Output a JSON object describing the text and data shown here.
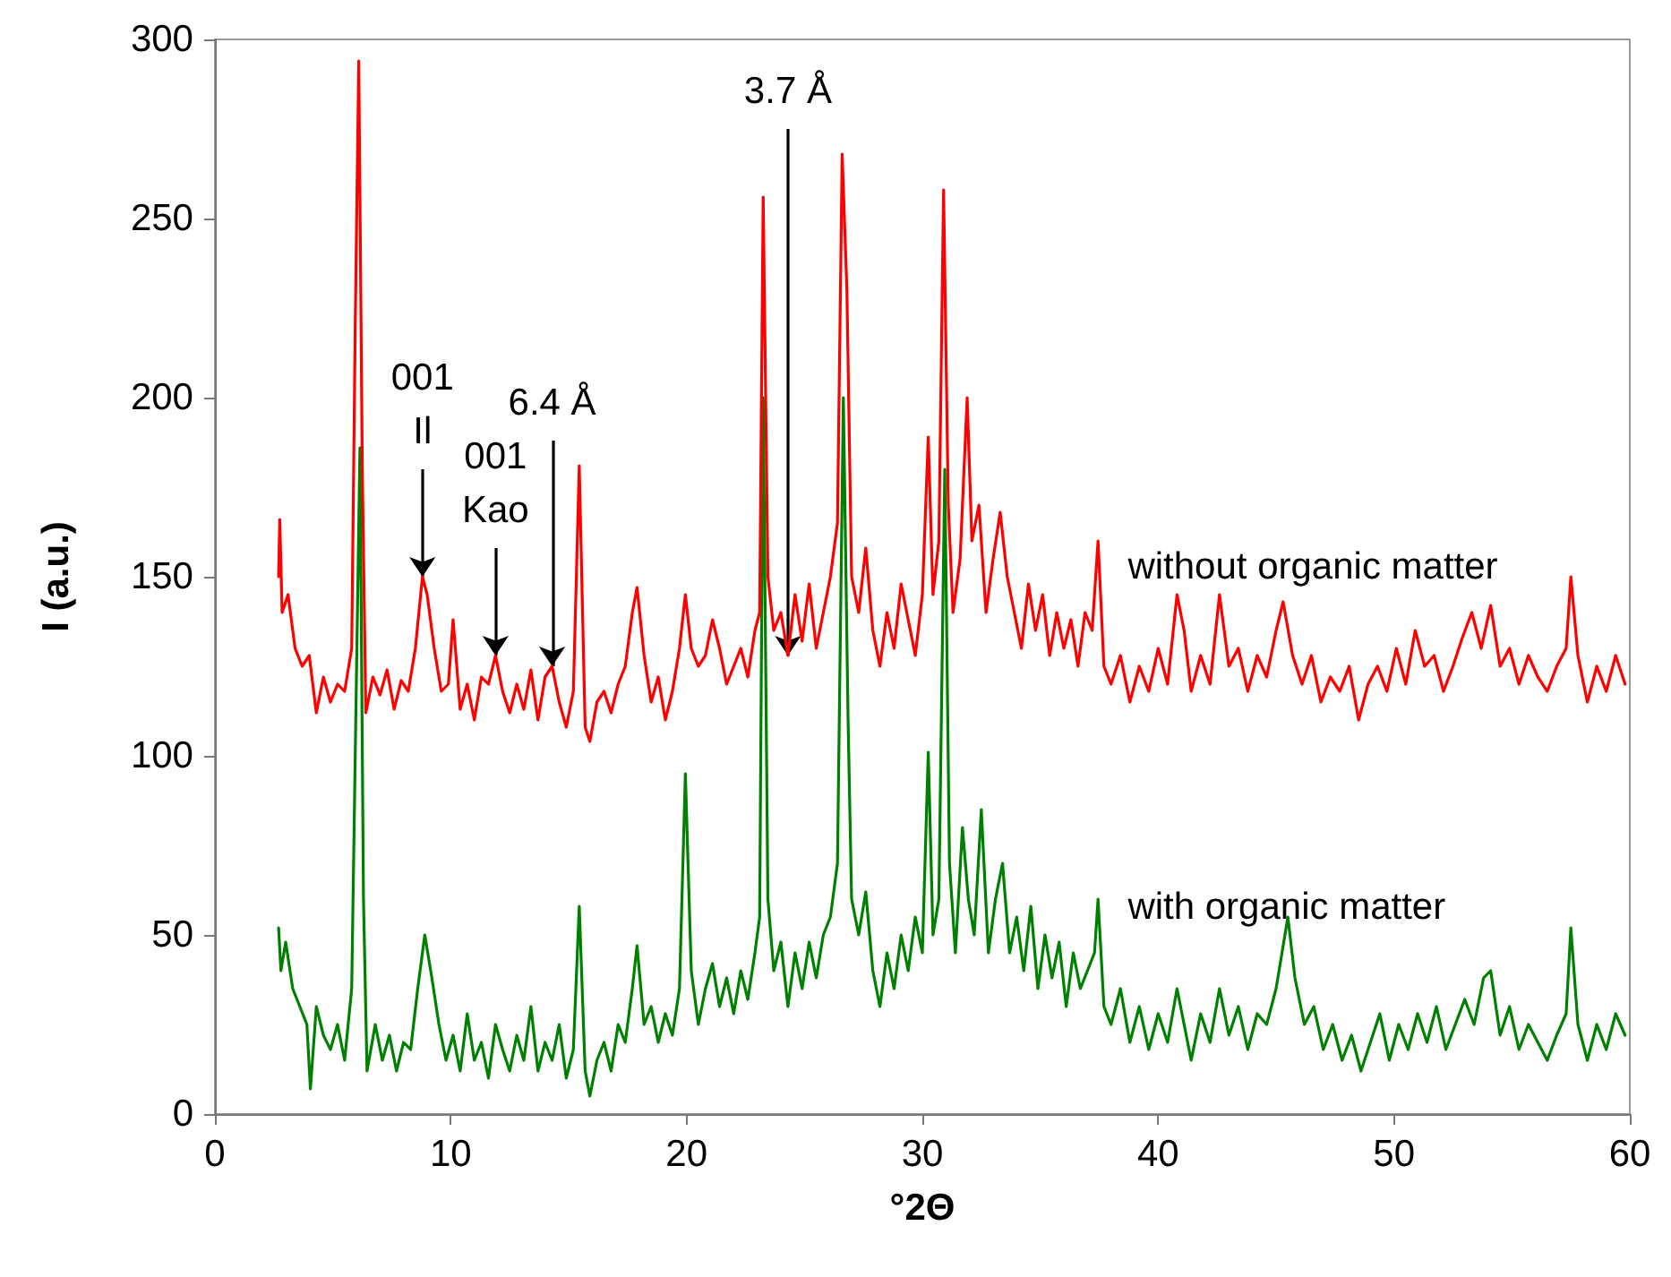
{
  "chart_data": {
    "type": "line",
    "xlabel": "°2Θ",
    "ylabel": "I (a.u.)",
    "xlim": [
      0,
      60
    ],
    "xticks": [
      0,
      10,
      20,
      30,
      40,
      50,
      60
    ],
    "ylim": [
      0,
      300
    ],
    "yticks": [
      0,
      50,
      100,
      150,
      200,
      250,
      300
    ],
    "grid": false,
    "legend": false,
    "marker": "none",
    "line_style": "solid",
    "annotations": [
      {
        "text": "001\nIl",
        "x": 8.8,
        "y": 150
      },
      {
        "text": "001\nKao",
        "x": 11.9,
        "y": 128
      },
      {
        "text": "6.4 Å",
        "x": 14.3,
        "y": 125
      },
      {
        "text": "3.7 Å",
        "x": 24.3,
        "y": 128
      }
    ],
    "series": [
      {
        "name": "without organic matter",
        "color": "#ff0000",
        "x": [
          2.7,
          2.75,
          2.85,
          3.1,
          3.4,
          3.7,
          4.0,
          4.3,
          4.6,
          4.9,
          5.2,
          5.5,
          5.8,
          5.95,
          6.1,
          6.25,
          6.4,
          6.7,
          7.0,
          7.3,
          7.6,
          7.9,
          8.2,
          8.5,
          8.8,
          9.0,
          9.3,
          9.6,
          9.9,
          10.1,
          10.4,
          10.7,
          11.0,
          11.3,
          11.6,
          11.9,
          12.2,
          12.5,
          12.8,
          13.1,
          13.4,
          13.7,
          14.0,
          14.3,
          14.6,
          14.9,
          15.2,
          15.45,
          15.7,
          15.9,
          16.2,
          16.5,
          16.8,
          17.1,
          17.4,
          17.7,
          17.9,
          18.2,
          18.5,
          18.8,
          19.1,
          19.4,
          19.7,
          19.95,
          20.2,
          20.5,
          20.8,
          21.1,
          21.4,
          21.7,
          22.0,
          22.3,
          22.6,
          22.9,
          23.1,
          23.25,
          23.45,
          23.7,
          24.0,
          24.3,
          24.6,
          24.9,
          25.2,
          25.5,
          25.8,
          26.1,
          26.4,
          26.6,
          26.8,
          27.0,
          27.3,
          27.6,
          27.9,
          28.2,
          28.5,
          28.8,
          29.1,
          29.4,
          29.7,
          30.0,
          30.25,
          30.45,
          30.7,
          30.9,
          31.1,
          31.3,
          31.6,
          31.9,
          32.1,
          32.4,
          32.7,
          33.0,
          33.3,
          33.6,
          33.9,
          34.2,
          34.5,
          34.8,
          35.1,
          35.4,
          35.7,
          36.0,
          36.3,
          36.6,
          36.9,
          37.2,
          37.45,
          37.7,
          38.0,
          38.4,
          38.8,
          39.2,
          39.6,
          40.0,
          40.4,
          40.8,
          41.1,
          41.4,
          41.8,
          42.2,
          42.6,
          43.0,
          43.4,
          43.8,
          44.2,
          44.6,
          45.0,
          45.3,
          45.7,
          46.1,
          46.5,
          46.9,
          47.3,
          47.7,
          48.1,
          48.5,
          48.9,
          49.3,
          49.7,
          50.1,
          50.5,
          50.9,
          51.3,
          51.7,
          52.1,
          52.5,
          52.9,
          53.3,
          53.7,
          54.1,
          54.5,
          54.9,
          55.3,
          55.7,
          56.1,
          56.5,
          56.9,
          57.3,
          57.5,
          57.8,
          58.2,
          58.6,
          59.0,
          59.4,
          59.8
        ],
        "values": [
          150,
          166,
          140,
          145,
          130,
          125,
          128,
          112,
          122,
          115,
          120,
          118,
          130,
          220,
          294,
          180,
          112,
          122,
          117,
          124,
          113,
          121,
          118,
          130,
          150,
          145,
          130,
          118,
          120,
          138,
          113,
          120,
          110,
          122,
          120,
          128,
          118,
          112,
          120,
          113,
          124,
          110,
          122,
          125,
          115,
          108,
          118,
          181,
          108,
          104,
          115,
          118,
          112,
          120,
          125,
          140,
          147,
          128,
          115,
          122,
          110,
          118,
          130,
          145,
          130,
          125,
          128,
          138,
          130,
          120,
          125,
          130,
          122,
          135,
          140,
          256,
          150,
          135,
          140,
          128,
          145,
          132,
          148,
          130,
          140,
          150,
          165,
          268,
          230,
          150,
          140,
          158,
          135,
          125,
          140,
          130,
          148,
          138,
          128,
          145,
          189,
          145,
          160,
          258,
          170,
          140,
          155,
          200,
          160,
          170,
          140,
          155,
          168,
          150,
          140,
          130,
          148,
          135,
          145,
          128,
          140,
          130,
          138,
          125,
          140,
          135,
          160,
          125,
          120,
          128,
          115,
          125,
          118,
          130,
          120,
          145,
          135,
          118,
          128,
          120,
          145,
          125,
          130,
          118,
          128,
          122,
          135,
          143,
          128,
          120,
          128,
          115,
          122,
          118,
          125,
          110,
          120,
          125,
          118,
          130,
          120,
          135,
          125,
          128,
          118,
          125,
          133,
          140,
          130,
          142,
          125,
          130,
          120,
          128,
          122,
          118,
          125,
          130,
          150,
          128,
          115,
          125,
          118,
          128,
          120
        ]
      },
      {
        "name": "with organic matter",
        "color": "#008000",
        "x": [
          2.7,
          2.8,
          3.0,
          3.3,
          3.6,
          3.9,
          4.05,
          4.3,
          4.6,
          4.9,
          5.2,
          5.5,
          5.8,
          5.95,
          6.15,
          6.3,
          6.45,
          6.8,
          7.1,
          7.4,
          7.7,
          8.0,
          8.3,
          8.6,
          8.9,
          9.2,
          9.5,
          9.8,
          10.1,
          10.4,
          10.7,
          11.0,
          11.3,
          11.6,
          11.9,
          12.2,
          12.5,
          12.8,
          13.1,
          13.4,
          13.7,
          14.0,
          14.3,
          14.6,
          14.9,
          15.2,
          15.45,
          15.7,
          15.9,
          16.2,
          16.5,
          16.8,
          17.1,
          17.4,
          17.7,
          17.9,
          18.2,
          18.5,
          18.8,
          19.1,
          19.4,
          19.7,
          19.95,
          20.2,
          20.5,
          20.8,
          21.1,
          21.4,
          21.7,
          22.0,
          22.3,
          22.6,
          22.9,
          23.1,
          23.25,
          23.45,
          23.7,
          24.0,
          24.3,
          24.6,
          24.9,
          25.2,
          25.5,
          25.8,
          26.1,
          26.4,
          26.65,
          26.85,
          27.0,
          27.3,
          27.6,
          27.9,
          28.2,
          28.5,
          28.8,
          29.1,
          29.4,
          29.7,
          30.0,
          30.25,
          30.45,
          30.7,
          30.95,
          31.15,
          31.4,
          31.7,
          31.95,
          32.2,
          32.5,
          32.8,
          33.1,
          33.4,
          33.7,
          34.0,
          34.3,
          34.6,
          34.9,
          35.2,
          35.5,
          35.8,
          36.1,
          36.4,
          36.7,
          37.0,
          37.3,
          37.45,
          37.7,
          38.0,
          38.4,
          38.8,
          39.2,
          39.6,
          40.0,
          40.4,
          40.8,
          41.1,
          41.4,
          41.8,
          42.2,
          42.6,
          43.0,
          43.4,
          43.8,
          44.2,
          44.6,
          45.0,
          45.5,
          45.8,
          46.2,
          46.6,
          47.0,
          47.4,
          47.8,
          48.2,
          48.6,
          49.0,
          49.4,
          49.8,
          50.2,
          50.6,
          51.0,
          51.4,
          51.8,
          52.2,
          52.6,
          53.0,
          53.4,
          53.8,
          54.1,
          54.5,
          54.9,
          55.3,
          55.7,
          56.1,
          56.5,
          56.9,
          57.3,
          57.5,
          57.8,
          58.2,
          58.6,
          59.0,
          59.4,
          59.8
        ],
        "values": [
          52,
          40,
          48,
          35,
          30,
          25,
          7,
          30,
          22,
          18,
          25,
          15,
          35,
          100,
          186,
          60,
          12,
          25,
          15,
          22,
          12,
          20,
          18,
          35,
          50,
          38,
          25,
          15,
          22,
          12,
          28,
          15,
          20,
          10,
          25,
          18,
          12,
          22,
          15,
          30,
          12,
          20,
          15,
          25,
          10,
          18,
          58,
          12,
          5,
          15,
          20,
          12,
          25,
          20,
          35,
          47,
          25,
          30,
          20,
          28,
          22,
          35,
          95,
          40,
          25,
          35,
          42,
          30,
          38,
          28,
          40,
          32,
          45,
          55,
          200,
          60,
          40,
          48,
          30,
          45,
          35,
          48,
          38,
          50,
          55,
          70,
          200,
          110,
          60,
          50,
          62,
          40,
          30,
          45,
          35,
          50,
          40,
          55,
          45,
          101,
          50,
          60,
          180,
          70,
          45,
          80,
          60,
          50,
          85,
          45,
          60,
          70,
          45,
          55,
          40,
          58,
          35,
          50,
          38,
          48,
          30,
          45,
          35,
          40,
          45,
          60,
          30,
          25,
          35,
          20,
          30,
          18,
          28,
          20,
          35,
          25,
          15,
          28,
          20,
          35,
          22,
          30,
          18,
          28,
          25,
          35,
          55,
          38,
          25,
          30,
          18,
          25,
          15,
          22,
          12,
          20,
          28,
          15,
          25,
          18,
          28,
          20,
          30,
          18,
          25,
          32,
          25,
          38,
          40,
          22,
          30,
          18,
          25,
          20,
          15,
          22,
          28,
          52,
          25,
          15,
          25,
          18,
          28,
          22
        ]
      }
    ]
  }
}
